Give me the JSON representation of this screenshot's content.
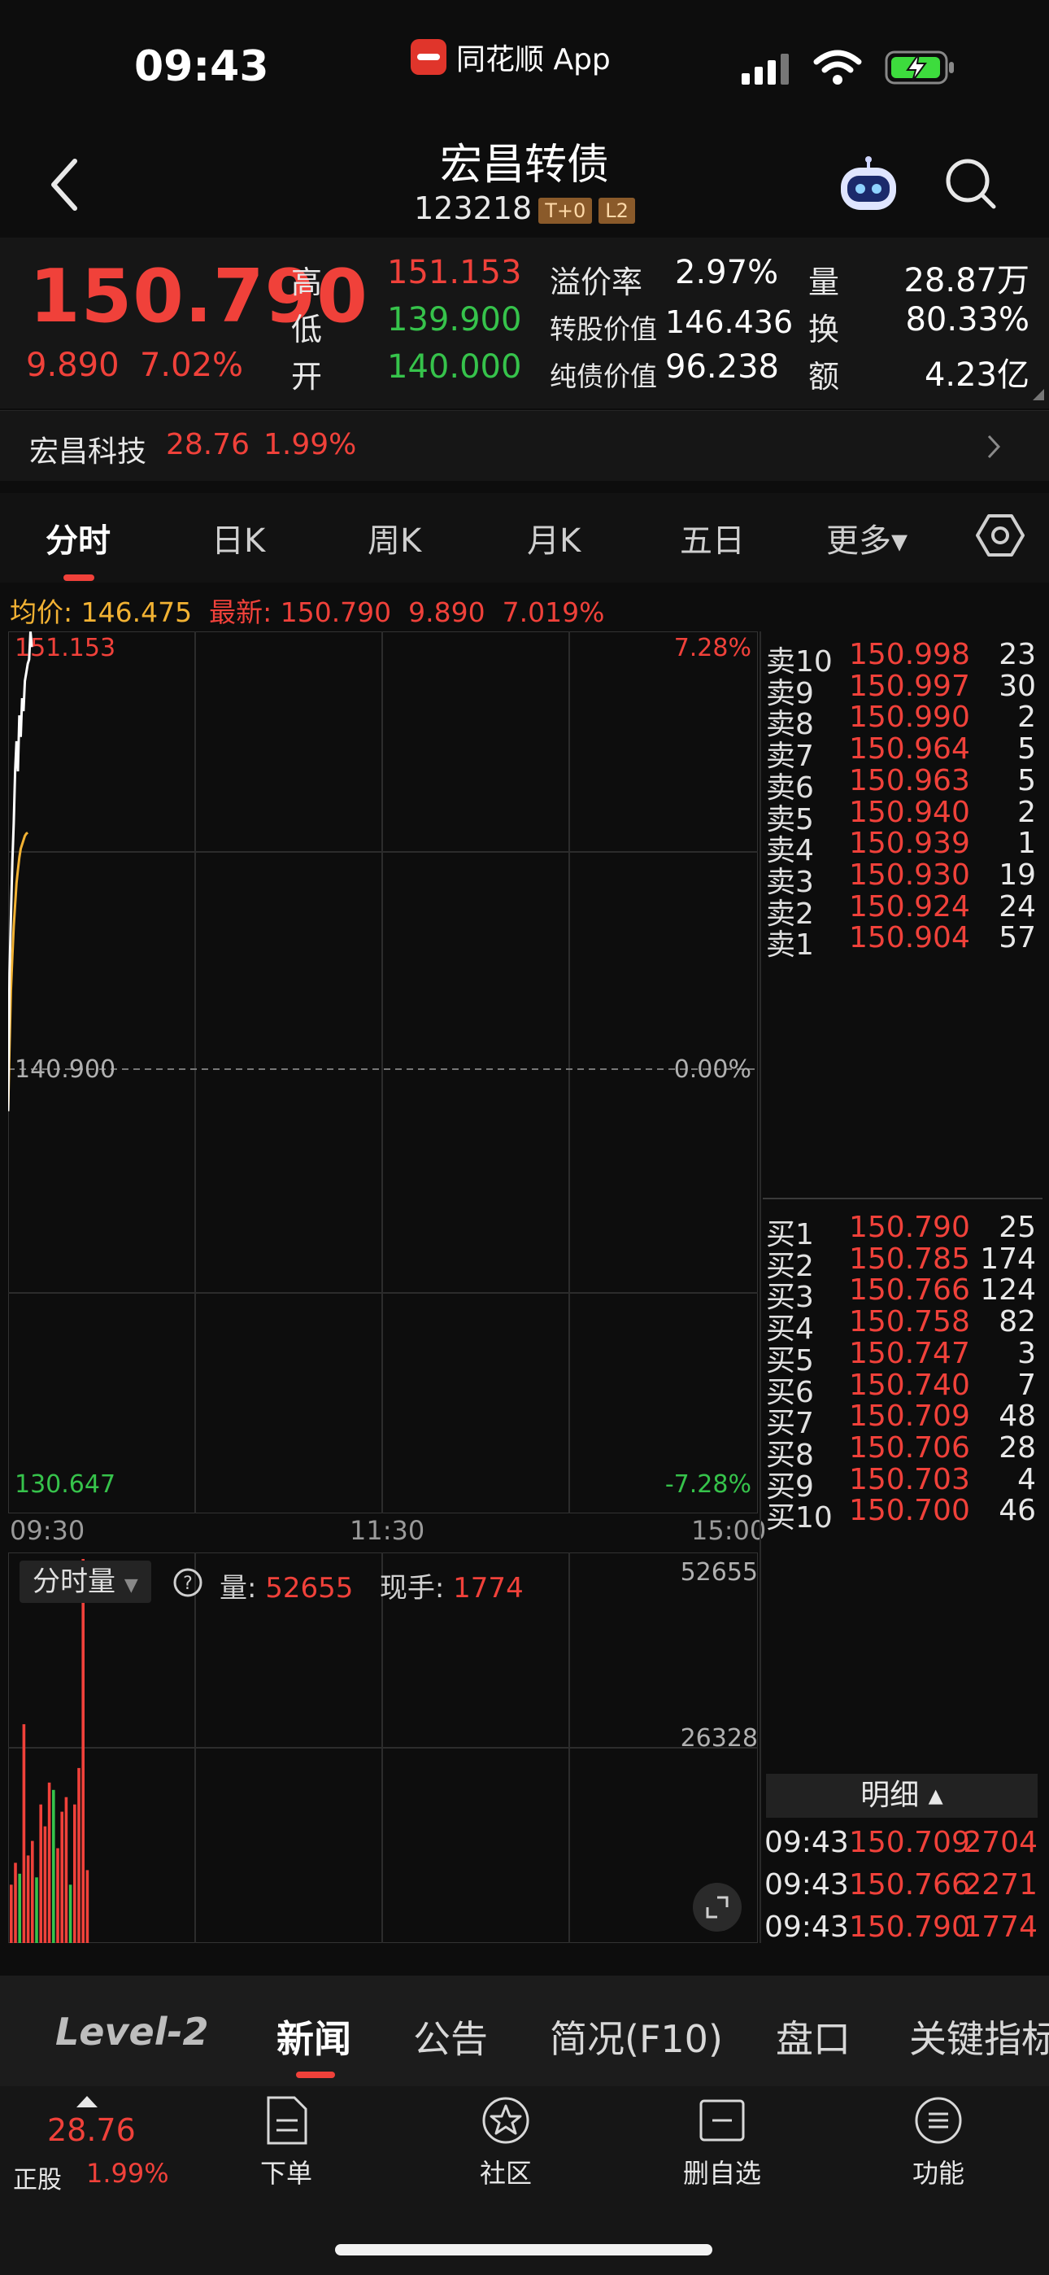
{
  "status_bar": {
    "time": "09:43",
    "app_label": "同花顺 App"
  },
  "header": {
    "title": "宏昌转债",
    "code": "123218",
    "tag_t0": "T+0",
    "tag_l2": "L2"
  },
  "quote": {
    "price": "150.790",
    "change": "9.890",
    "change_pct": "7.02%",
    "high_label": "高",
    "high": "151.153",
    "low_label": "低",
    "low": "139.900",
    "open_label": "开",
    "open": "140.000",
    "premium_label": "溢价率",
    "premium": "2.97%",
    "conv_value_label": "转股价值",
    "conv_value": "146.436",
    "bond_value_label": "纯债价值",
    "bond_value": "96.238",
    "volume_label": "量",
    "volume": "28.87万",
    "turnover_label": "换",
    "turnover": "80.33%",
    "amount_label": "额",
    "amount": "4.23亿"
  },
  "underlying": {
    "name": "宏昌科技",
    "price": "28.76",
    "pct": "1.99%"
  },
  "tabs": [
    "分时",
    "日K",
    "周K",
    "月K",
    "五日",
    "更多▾"
  ],
  "info_line": {
    "avg_label": "均价:",
    "avg": "146.475",
    "latest_label": "最新:",
    "latest": "150.790",
    "chg": "9.890",
    "pct": "7.019%"
  },
  "chart_data": {
    "type": "line",
    "x_ticks": [
      "09:30",
      "11:30",
      "15:00"
    ],
    "y_top": "151.153",
    "y_mid": "140.900",
    "y_bottom": "130.647",
    "pct_top": "7.28%",
    "pct_mid": "0.00%",
    "pct_bottom": "-7.28%",
    "ylim": [
      130.647,
      151.153
    ],
    "series": [
      {
        "values": [
          140.0,
          143.2,
          144.5,
          145.8,
          146.7,
          147.9,
          148.6,
          147.9,
          149.2,
          148.7,
          149.6,
          149.3,
          150.0,
          150.2,
          150.4,
          150.5,
          151.15,
          150.79
        ]
      },
      {
        "values": [
          140.0,
          141.5,
          142.8,
          143.6,
          144.3,
          144.8,
          145.3,
          145.6,
          145.9,
          146.1,
          146.2,
          146.3,
          146.4,
          146.45,
          146.475
        ]
      }
    ]
  },
  "volume_panel": {
    "selector": "分时量",
    "vol_label": "量:",
    "vol": "52655",
    "now_label": "现手:",
    "now": "1774",
    "max": "52655",
    "mid": "26328",
    "bars": [
      8000,
      11000,
      9500,
      30000,
      12000,
      14000,
      9000,
      19000,
      16000,
      22000,
      21000,
      13000,
      18000,
      20000,
      8000,
      19000,
      24000,
      52655,
      10000
    ],
    "bar_colors": [
      "red",
      "red",
      "green",
      "red",
      "red",
      "red",
      "green",
      "red",
      "red",
      "red",
      "green",
      "red",
      "red",
      "red",
      "green",
      "red",
      "red",
      "red",
      "red"
    ]
  },
  "order_book": {
    "asks": [
      {
        "label": "卖10",
        "price": "150.998",
        "qty": "23"
      },
      {
        "label": "卖9",
        "price": "150.997",
        "qty": "30"
      },
      {
        "label": "卖8",
        "price": "150.990",
        "qty": "2"
      },
      {
        "label": "卖7",
        "price": "150.964",
        "qty": "5"
      },
      {
        "label": "卖6",
        "price": "150.963",
        "qty": "5"
      },
      {
        "label": "卖5",
        "price": "150.940",
        "qty": "2"
      },
      {
        "label": "卖4",
        "price": "150.939",
        "qty": "1"
      },
      {
        "label": "卖3",
        "price": "150.930",
        "qty": "19"
      },
      {
        "label": "卖2",
        "price": "150.924",
        "qty": "24"
      },
      {
        "label": "卖1",
        "price": "150.904",
        "qty": "57"
      }
    ],
    "bids": [
      {
        "label": "买1",
        "price": "150.790",
        "qty": "25"
      },
      {
        "label": "买2",
        "price": "150.785",
        "qty": "174"
      },
      {
        "label": "买3",
        "price": "150.766",
        "qty": "124"
      },
      {
        "label": "买4",
        "price": "150.758",
        "qty": "82"
      },
      {
        "label": "买5",
        "price": "150.747",
        "qty": "3"
      },
      {
        "label": "买6",
        "price": "150.740",
        "qty": "7"
      },
      {
        "label": "买7",
        "price": "150.709",
        "qty": "48"
      },
      {
        "label": "买8",
        "price": "150.706",
        "qty": "28"
      },
      {
        "label": "买9",
        "price": "150.703",
        "qty": "4"
      },
      {
        "label": "买10",
        "price": "150.700",
        "qty": "46"
      }
    ],
    "detail_label": "明细 ▴",
    "details": [
      {
        "time": "09:43",
        "price": "150.709",
        "qty": "2704"
      },
      {
        "time": "09:43",
        "price": "150.766",
        "qty": "2271"
      },
      {
        "time": "09:43",
        "price": "150.790",
        "qty": "1774"
      }
    ]
  },
  "news_tabs": [
    "Level-2",
    "新闻",
    "公告",
    "简况(F10)",
    "盘口",
    "关键指标"
  ],
  "bottom_bar": {
    "stock_price": "28.76",
    "stock_label": "正股",
    "stock_pct": "1.99%",
    "order_label": "下单",
    "community_label": "社区",
    "remove_label": "删自选",
    "menu_label": "功能"
  },
  "colors": {
    "up": "#f0413a",
    "down": "#36c34b",
    "avg_line": "#f2b233",
    "price_line": "#ffffff"
  }
}
